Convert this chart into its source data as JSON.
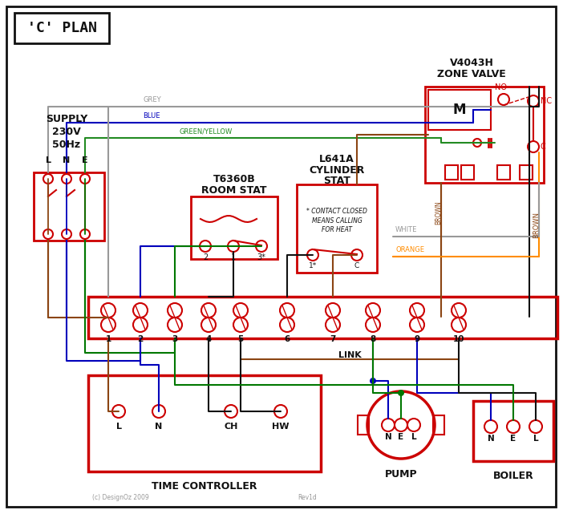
{
  "bg": "#ffffff",
  "R": "#cc0000",
  "BL": "#0000bb",
  "GR": "#007700",
  "GY": "#999999",
  "BR": "#8B4513",
  "OR": "#FF8C00",
  "BK": "#111111",
  "GYE": "#228B22",
  "title": "'C' PLAN",
  "supply_lines": [
    "SUPPLY",
    "230V",
    "50Hz"
  ],
  "lne": [
    "L",
    "N",
    "E"
  ],
  "zone_title1": "V4043H",
  "zone_title2": "ZONE VALVE",
  "room_stat1": "T6360B",
  "room_stat2": "ROOM STAT",
  "cyl_stat1": "L641A",
  "cyl_stat2": "CYLINDER",
  "cyl_stat3": "STAT",
  "cyl_note": "* CONTACT CLOSED\nMEANS CALLING\nFOR HEAT",
  "time_ctrl": "TIME CONTROLLER",
  "pump_lbl": "PUMP",
  "boiler_lbl": "BOILER",
  "link_lbl": "LINK",
  "copyright": "(c) DesignOz 2009",
  "rev": "Rev1d",
  "wire_grey": "GREY",
  "wire_blue": "BLUE",
  "wire_gy": "GREEN/YELLOW",
  "wire_brown": "BROWN",
  "wire_white": "WHITE",
  "wire_orange": "ORANGE",
  "terminals": [
    1,
    2,
    3,
    4,
    5,
    6,
    7,
    8,
    9,
    10
  ]
}
